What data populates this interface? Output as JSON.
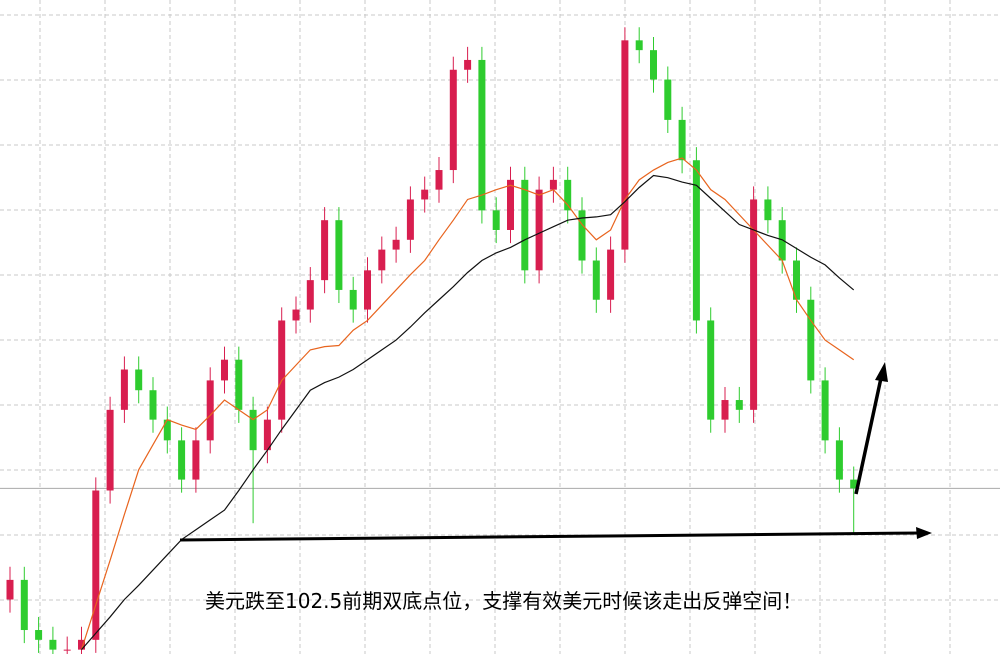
{
  "chart_data": {
    "type": "candlestick",
    "annotation": "美元跌至102.5前期双底点位，支撑有效美元时候该走出反弹空间！",
    "ylim": [
      101.5,
      107.5
    ],
    "grid": true,
    "up_color": "#d81e4f",
    "down_color": "#2ecc2e",
    "open": [
      102.0,
      102.18,
      101.72,
      101.63,
      101.54,
      101.54,
      101.63,
      103.0,
      103.74,
      104.11,
      103.92,
      103.65,
      103.46,
      103.1,
      103.46,
      104.01,
      104.2,
      103.74,
      103.37,
      103.65,
      104.56,
      104.66,
      104.93,
      105.48,
      104.84,
      104.66,
      105.02,
      105.21,
      105.3,
      105.67,
      105.76,
      105.94,
      106.86,
      106.95,
      105.57,
      105.39,
      105.85,
      105.02,
      105.76,
      105.85,
      105.57,
      105.11,
      104.75,
      105.21,
      107.13,
      107.04,
      106.77,
      106.4,
      106.03,
      104.56,
      103.65,
      103.83,
      103.74,
      105.67,
      105.48,
      105.11,
      104.75,
      104.01,
      103.46,
      103.1
    ],
    "high": [
      102.3,
      102.3,
      101.84,
      101.75,
      101.66,
      101.75,
      103.12,
      103.86,
      104.23,
      104.23,
      104.04,
      103.77,
      103.58,
      103.58,
      104.13,
      104.32,
      104.32,
      103.86,
      103.77,
      104.68,
      104.78,
      105.05,
      105.6,
      105.6,
      104.96,
      105.14,
      105.33,
      105.42,
      105.79,
      105.88,
      106.06,
      106.98,
      107.07,
      107.07,
      105.69,
      105.97,
      105.97,
      105.88,
      105.97,
      105.97,
      105.69,
      105.23,
      105.33,
      107.25,
      107.25,
      107.16,
      106.89,
      106.52,
      106.15,
      104.68,
      103.95,
      103.95,
      105.79,
      105.79,
      105.6,
      105.23,
      104.87,
      104.13,
      103.58,
      103.22
    ],
    "low": [
      101.88,
      101.6,
      101.51,
      101.42,
      101.42,
      101.42,
      101.51,
      102.88,
      103.62,
      103.8,
      103.53,
      103.34,
      102.98,
      102.98,
      103.34,
      103.89,
      103.62,
      102.7,
      103.25,
      103.53,
      104.44,
      104.54,
      104.81,
      104.72,
      104.54,
      104.54,
      104.9,
      105.09,
      105.18,
      105.55,
      105.64,
      105.82,
      106.74,
      105.45,
      105.27,
      105.27,
      104.9,
      104.9,
      105.64,
      105.45,
      104.99,
      104.63,
      104.63,
      105.09,
      106.92,
      106.65,
      106.28,
      105.91,
      104.44,
      103.53,
      103.53,
      103.62,
      103.62,
      105.36,
      104.99,
      104.63,
      103.89,
      103.34,
      102.98,
      102.6
    ],
    "close": [
      102.18,
      101.72,
      101.63,
      101.54,
      101.54,
      101.63,
      103.0,
      103.74,
      104.11,
      103.92,
      103.65,
      103.46,
      103.1,
      103.46,
      104.01,
      104.2,
      103.74,
      103.37,
      103.65,
      104.56,
      104.66,
      104.93,
      105.48,
      104.84,
      104.66,
      105.02,
      105.21,
      105.3,
      105.67,
      105.76,
      105.94,
      106.86,
      106.95,
      105.57,
      105.39,
      105.85,
      105.02,
      105.76,
      105.85,
      105.57,
      105.11,
      104.75,
      105.21,
      107.13,
      107.04,
      106.77,
      106.4,
      106.03,
      104.56,
      103.65,
      103.83,
      103.74,
      105.67,
      105.48,
      105.11,
      104.75,
      104.01,
      103.46,
      103.1,
      103.02
    ],
    "lines": [
      {
        "color": "#e8641e",
        "values": [
          null,
          null,
          null,
          null,
          null,
          101.54,
          101.95,
          102.36,
          102.78,
          103.19,
          103.42,
          103.65,
          103.6,
          103.56,
          103.69,
          103.83,
          103.74,
          103.65,
          103.74,
          104.01,
          104.15,
          104.29,
          104.32,
          104.33,
          104.47,
          104.56,
          104.7,
          104.84,
          104.98,
          105.11,
          105.3,
          105.48,
          105.67,
          105.71,
          105.76,
          105.8,
          105.76,
          105.71,
          105.76,
          105.62,
          105.44,
          105.3,
          105.39,
          105.67,
          105.85,
          105.94,
          106.01,
          106.05,
          105.94,
          105.76,
          105.67,
          105.53,
          105.39,
          105.25,
          105.11,
          104.75,
          104.56,
          104.38,
          104.29,
          104.2
        ]
      },
      {
        "color": "#111111",
        "values": [
          null,
          null,
          null,
          null,
          null,
          101.54,
          101.69,
          101.84,
          102.0,
          102.13,
          102.27,
          102.41,
          102.55,
          102.64,
          102.73,
          102.82,
          103.0,
          103.19,
          103.37,
          103.56,
          103.74,
          103.92,
          103.99,
          104.04,
          104.11,
          104.2,
          104.29,
          104.38,
          104.5,
          104.63,
          104.75,
          104.87,
          105.0,
          105.11,
          105.18,
          105.23,
          105.3,
          105.36,
          105.42,
          105.48,
          105.5,
          105.51,
          105.53,
          105.65,
          105.78,
          105.89,
          105.87,
          105.83,
          105.8,
          105.68,
          105.56,
          105.44,
          105.39,
          105.34,
          105.3,
          105.22,
          105.14,
          105.07,
          104.95,
          104.84
        ]
      }
    ]
  }
}
